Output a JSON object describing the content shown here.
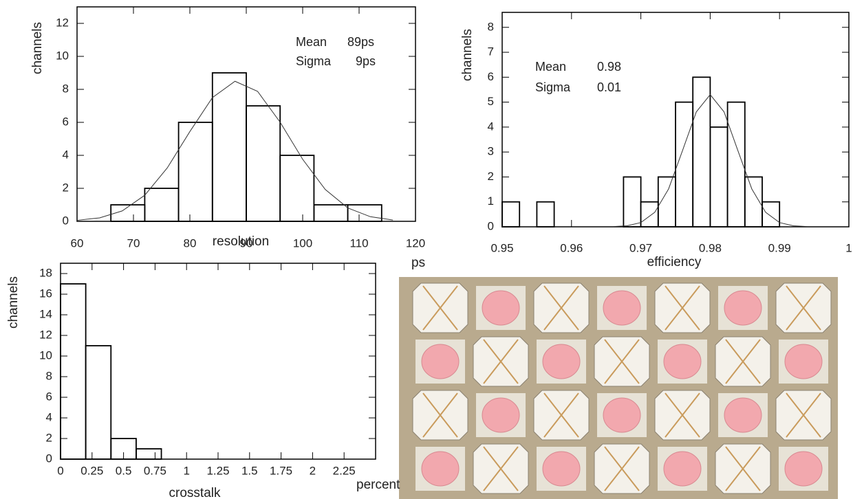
{
  "chart_data": [
    {
      "type": "histogram",
      "bins": [
        66,
        72,
        78,
        84,
        90,
        96,
        102,
        108,
        114
      ],
      "values": [
        1,
        2,
        6,
        9,
        7,
        4,
        1,
        1
      ],
      "fit": {
        "x": [
          60,
          64,
          68,
          72,
          76,
          80,
          84,
          88,
          92,
          96,
          100,
          104,
          108,
          112,
          116
        ],
        "values": [
          0.06,
          0.21,
          0.63,
          1.58,
          3.24,
          5.44,
          7.5,
          8.49,
          7.88,
          6.01,
          3.76,
          1.93,
          0.81,
          0.28,
          0.08
        ]
      },
      "xlim": [
        60,
        120
      ],
      "ylim": [
        0,
        13
      ],
      "xticks": [
        60,
        70,
        80,
        90,
        100,
        110,
        120
      ],
      "yticks": [
        0,
        2,
        4,
        6,
        8,
        10,
        12
      ],
      "x_label": "resolution",
      "x_unit": "ps",
      "y_label": "channels",
      "color": "#000000",
      "annotations": [
        "Mean",
        "89ps",
        "Sigma",
        "9ps"
      ]
    },
    {
      "type": "histogram",
      "bins": [
        0.95,
        0.9525,
        0.955,
        0.9575,
        0.96,
        0.9625,
        0.965,
        0.9675,
        0.97,
        0.9725,
        0.975,
        0.9775,
        0.98,
        0.9825,
        0.985,
        0.9875,
        0.99
      ],
      "values": [
        1,
        0,
        1,
        0,
        0,
        0,
        0,
        2,
        1,
        2,
        5,
        6,
        4,
        5,
        2,
        1
      ],
      "fit": {
        "x": [
          0.966,
          0.968,
          0.97,
          0.972,
          0.974,
          0.976,
          0.978,
          0.98,
          0.982,
          0.984,
          0.986,
          0.988,
          0.99,
          0.992,
          0.994
        ],
        "values": [
          0.01,
          0.04,
          0.17,
          0.58,
          1.52,
          3.05,
          4.61,
          5.3,
          4.61,
          3.05,
          1.52,
          0.58,
          0.17,
          0.04,
          0.01
        ]
      },
      "xlim": [
        0.95,
        1
      ],
      "ylim": [
        0,
        8.6
      ],
      "xticks": [
        0.95,
        0.96,
        0.97,
        0.98,
        0.99,
        1
      ],
      "yticks": [
        0,
        1,
        2,
        3,
        4,
        5,
        6,
        7,
        8
      ],
      "x_label": "efficiency",
      "y_label": "channels",
      "color": "#000000",
      "annotations": [
        "Mean",
        "0.98",
        "Sigma",
        "0.01"
      ]
    },
    {
      "type": "histogram",
      "bins": [
        0,
        0.2,
        0.4,
        0.6,
        0.8
      ],
      "values": [
        17,
        11,
        2,
        1
      ],
      "xlim": [
        0,
        2.5
      ],
      "ylim": [
        0,
        19
      ],
      "xticks": [
        0,
        0.25,
        0.5,
        0.75,
        1,
        1.25,
        1.5,
        1.75,
        2,
        2.25
      ],
      "yticks": [
        0,
        2,
        4,
        6,
        8,
        10,
        12,
        14,
        16,
        18
      ],
      "x_label": "crosstalk",
      "x_unit": "percent",
      "y_label": "channels",
      "color": "#000000"
    }
  ]
}
